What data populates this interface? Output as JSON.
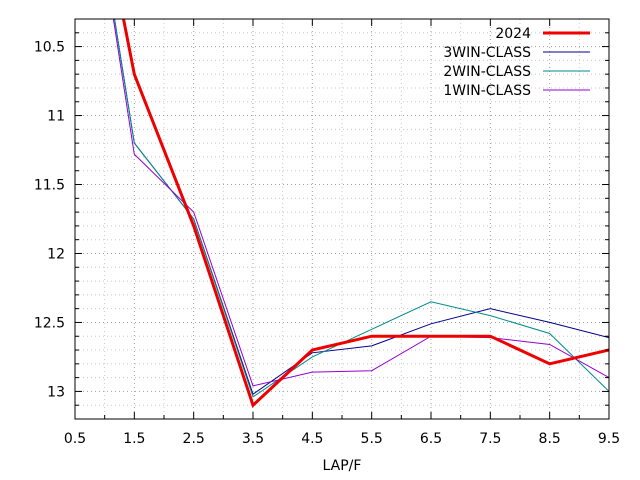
{
  "chart_data": {
    "type": "line",
    "xlabel": "LAP/F",
    "ylabel": "",
    "xlim": [
      0.5,
      9.5
    ],
    "ylim": [
      10.3,
      13.2
    ],
    "y_reversed": true,
    "grid": true,
    "legend_position": "top-right",
    "x_ticks": [
      "0.5",
      "1.5",
      "2.5",
      "3.5",
      "4.5",
      "5.5",
      "6.5",
      "7.5",
      "8.5",
      "9.5"
    ],
    "y_ticks": [
      "10.5",
      "11",
      "11.5",
      "12",
      "12.5",
      "13"
    ],
    "series": [
      {
        "name": "2024",
        "color": "#ee0000",
        "width": 3,
        "points": [
          [
            0.5,
            8.5
          ],
          [
            1.5,
            10.7
          ],
          [
            2.5,
            11.8
          ],
          [
            3.5,
            13.1
          ],
          [
            4.5,
            12.7
          ],
          [
            5.5,
            12.6
          ],
          [
            6.5,
            12.6
          ],
          [
            7.5,
            12.6
          ],
          [
            8.5,
            12.8
          ],
          [
            9.5,
            12.7
          ]
        ]
      },
      {
        "name": "3WIN-CLASS",
        "color": "#00008b",
        "width": 1,
        "points": [
          [
            0.5,
            8.5
          ],
          [
            1.5,
            11.2
          ],
          [
            2.5,
            11.75
          ],
          [
            3.5,
            13.02
          ],
          [
            4.5,
            12.72
          ],
          [
            5.5,
            12.67
          ],
          [
            6.5,
            12.51
          ],
          [
            7.5,
            12.4
          ],
          [
            8.5,
            12.5
          ],
          [
            9.5,
            12.61
          ]
        ]
      },
      {
        "name": "2WIN-CLASS",
        "color": "#008b8b",
        "width": 1,
        "points": [
          [
            0.5,
            8.5
          ],
          [
            1.5,
            11.2
          ],
          [
            2.5,
            11.75
          ],
          [
            3.5,
            13.04
          ],
          [
            4.5,
            12.75
          ],
          [
            5.5,
            12.55
          ],
          [
            6.5,
            12.35
          ],
          [
            7.5,
            12.45
          ],
          [
            8.5,
            12.58
          ],
          [
            9.5,
            13.0
          ]
        ]
      },
      {
        "name": "1WIN-CLASS",
        "color": "#9400d3",
        "width": 1,
        "points": [
          [
            0.5,
            8.5
          ],
          [
            1.5,
            11.28
          ],
          [
            2.5,
            11.7
          ],
          [
            3.5,
            12.96
          ],
          [
            4.5,
            12.86
          ],
          [
            5.5,
            12.85
          ],
          [
            6.5,
            12.6
          ],
          [
            7.5,
            12.61
          ],
          [
            8.5,
            12.66
          ],
          [
            9.5,
            12.9
          ]
        ]
      }
    ]
  }
}
